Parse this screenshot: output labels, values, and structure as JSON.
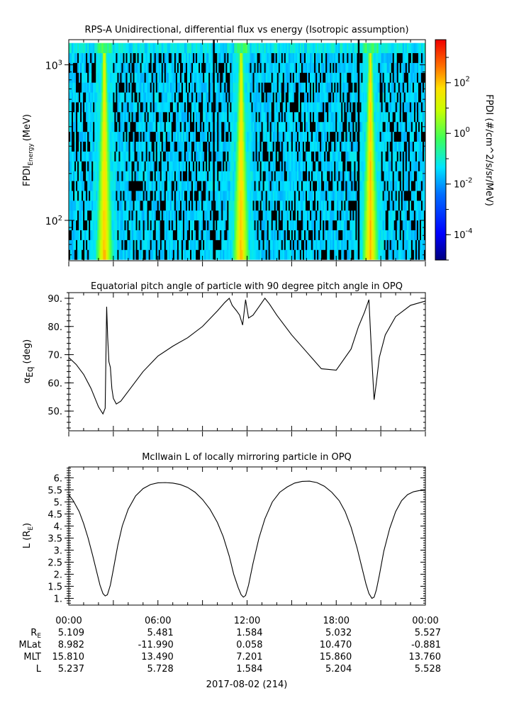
{
  "chart_data": [
    {
      "type": "heatmap",
      "title": "RPS-A Unidirectional, differential flux vs energy (Isotropic assumption)",
      "ylabel_main": "FPDI",
      "ylabel_sub": "Energy",
      "ylabel_unit": "(MeV)",
      "y_scale": "log",
      "ylim": [
        55,
        1450
      ],
      "y_ticks": [
        {
          "value": 100,
          "base": "10",
          "exp": "2"
        },
        {
          "value": 1000,
          "base": "10",
          "exp": "3"
        }
      ],
      "colorbar": {
        "label": "FPDI (#/cm^2/s/sr/MeV)",
        "scale": "log",
        "range": [
          1e-05,
          5000
        ],
        "ticks": [
          {
            "value": 0.0001,
            "base": "10",
            "exp": "-4"
          },
          {
            "value": 0.01,
            "base": "10",
            "exp": "-2"
          },
          {
            "value": 1,
            "base": "10",
            "exp": "0"
          },
          {
            "value": 100,
            "base": "10",
            "exp": "2"
          }
        ]
      },
      "bright_bands_hours": [
        2.4,
        11.6,
        20.3
      ]
    },
    {
      "type": "line",
      "title": "Equatorial pitch angle of particle with 90 degree pitch angle in OPQ",
      "ylabel_main": "α",
      "ylabel_sub": "Eq",
      "ylabel_unit": "(deg)",
      "ylim": [
        43,
        92
      ],
      "y_ticks": [
        "50.",
        "60.",
        "70.",
        "80.",
        "90."
      ],
      "x_hours": [
        0,
        0.5,
        1,
        1.5,
        2,
        2.3,
        2.45,
        2.55,
        2.62,
        2.7,
        2.8,
        2.9,
        3.0,
        3.2,
        3.5,
        4,
        5,
        6,
        7,
        8,
        9,
        10,
        10.5,
        10.8,
        11.0,
        11.3,
        11.5,
        11.7,
        11.9,
        12.1,
        12.4,
        12.8,
        13.2,
        13.5,
        14,
        15,
        16,
        17,
        18,
        19,
        19.5,
        19.9,
        20.2,
        20.4,
        20.55,
        20.7,
        20.9,
        21.3,
        22,
        23,
        24
      ],
      "y": [
        69,
        66.5,
        63,
        58,
        51.5,
        49,
        51,
        87,
        76,
        67.5,
        65.5,
        58,
        54.5,
        52.5,
        53.5,
        57,
        64,
        69.5,
        73,
        76,
        80,
        85.5,
        88.5,
        90,
        87.5,
        85.5,
        84,
        80.5,
        89.5,
        83,
        84,
        87,
        90,
        88,
        84,
        77,
        71,
        65,
        64.5,
        72,
        80,
        85,
        89.5,
        68,
        54,
        60,
        69,
        77,
        83.5,
        87.5,
        89
      ]
    },
    {
      "type": "line",
      "title": "McIlwain L of locally mirroring particle in OPQ",
      "ylabel": "L (R",
      "ylabel_sub": "E",
      "ylabel_close": ")",
      "ylim": [
        0.72,
        6.45
      ],
      "y_ticks": [
        "1.",
        "1.5",
        "2.",
        "2.5",
        "3.",
        "3.5",
        "4.",
        "4.5",
        "5.",
        "5.5",
        "6."
      ],
      "x_hours": [
        0,
        0.3,
        0.7,
        1,
        1.3,
        1.6,
        1.9,
        2.1,
        2.3,
        2.45,
        2.6,
        2.8,
        3.0,
        3.3,
        3.6,
        4,
        4.5,
        5,
        5.5,
        6,
        6.5,
        7,
        7.5,
        8,
        8.5,
        9,
        9.5,
        10,
        10.4,
        10.8,
        11.1,
        11.4,
        11.6,
        11.75,
        11.9,
        12.1,
        12.4,
        12.8,
        13.2,
        13.7,
        14.2,
        14.7,
        15.2,
        15.7,
        16.2,
        16.7,
        17.2,
        17.7,
        18.2,
        18.6,
        19,
        19.4,
        19.7,
        20,
        20.2,
        20.4,
        20.55,
        20.7,
        20.9,
        21.2,
        21.6,
        22,
        22.4,
        22.8,
        23.2,
        23.6,
        24
      ],
      "y": [
        5.3,
        5.05,
        4.6,
        4.1,
        3.5,
        2.8,
        2.05,
        1.55,
        1.2,
        1.1,
        1.15,
        1.55,
        2.2,
        3.2,
        4.0,
        4.7,
        5.25,
        5.55,
        5.72,
        5.79,
        5.8,
        5.78,
        5.72,
        5.6,
        5.4,
        5.1,
        4.7,
        4.15,
        3.55,
        2.75,
        2.0,
        1.45,
        1.15,
        1.05,
        1.12,
        1.55,
        2.45,
        3.5,
        4.3,
        5.0,
        5.4,
        5.62,
        5.78,
        5.85,
        5.86,
        5.8,
        5.65,
        5.4,
        5.05,
        4.6,
        3.95,
        3.1,
        2.35,
        1.6,
        1.2,
        1.0,
        1.05,
        1.35,
        1.95,
        2.95,
        3.9,
        4.6,
        5.05,
        5.3,
        5.42,
        5.47,
        5.48
      ]
    }
  ],
  "x_axis": {
    "tick_hours": [
      0,
      6,
      12,
      18,
      24
    ],
    "tick_labels": [
      "00:00",
      "06:00",
      "12:00",
      "18:00",
      "00:00"
    ],
    "date_label": "2017-08-02 (214)"
  },
  "ephemeris": {
    "rows": [
      {
        "name": "R",
        "sub": "E",
        "values": [
          "5.109",
          "5.481",
          "1.584",
          "5.032",
          "5.527"
        ]
      },
      {
        "name": "MLat",
        "sub": "",
        "values": [
          "8.982",
          "-11.990",
          "0.058",
          "10.470",
          "-0.881"
        ]
      },
      {
        "name": "MLT",
        "sub": "",
        "values": [
          "15.810",
          "13.490",
          "7.201",
          "15.860",
          "13.760"
        ]
      },
      {
        "name": "L",
        "sub": "",
        "values": [
          "5.237",
          "5.728",
          "1.584",
          "5.204",
          "5.528"
        ]
      }
    ]
  }
}
